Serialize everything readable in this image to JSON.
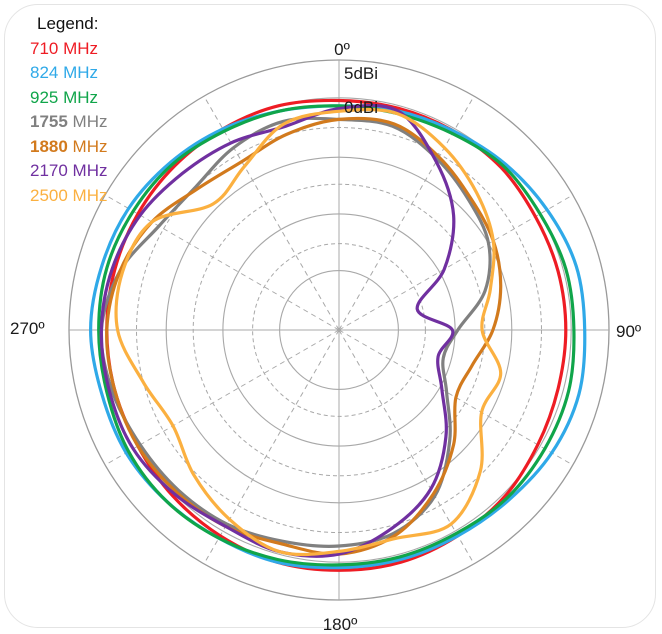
{
  "legend": {
    "title": "Legend:",
    "items": [
      {
        "freq": "710",
        "unit": " MHz",
        "color": "#ee1c24"
      },
      {
        "freq": "824",
        "unit": " MHz",
        "color": "#2fa9e8"
      },
      {
        "freq": "925",
        "unit": " MHz",
        "color": "#10a54a"
      },
      {
        "freq": "1755",
        "unit": " MHz",
        "color": "#808080"
      },
      {
        "freq": "1880",
        "unit": " MHz",
        "color": "#d27a1d"
      },
      {
        "freq": "2170",
        "unit": " MHz",
        "color": "#7030a0"
      },
      {
        "freq": "2500",
        "unit": " MHz",
        "color": "#fbb040"
      }
    ]
  },
  "chart_data": {
    "type": "polar-line",
    "angle_labels": {
      "top": "0º",
      "right": "90º",
      "bottom": "180º",
      "left": "270º"
    },
    "ring_labels": [
      "5dBi",
      "0dBi"
    ],
    "grid": true,
    "angles_deg": [
      0,
      15,
      30,
      45,
      60,
      75,
      90,
      105,
      120,
      135,
      150,
      165,
      180,
      195,
      210,
      225,
      240,
      255,
      270,
      285,
      300,
      315,
      330,
      345
    ],
    "series": [
      {
        "name": "710 MHz",
        "color": "#ee1c24",
        "r": [
          0.85,
          0.85,
          0.85,
          0.85,
          0.84,
          0.84,
          0.84,
          0.84,
          0.85,
          0.87,
          0.88,
          0.89,
          0.89,
          0.89,
          0.88,
          0.87,
          0.86,
          0.86,
          0.86,
          0.86,
          0.86,
          0.86,
          0.86,
          0.86
        ]
      },
      {
        "name": "824 MHz",
        "color": "#2fa9e8",
        "r": [
          0.83,
          0.84,
          0.85,
          0.87,
          0.89,
          0.91,
          0.91,
          0.92,
          0.91,
          0.89,
          0.88,
          0.88,
          0.88,
          0.89,
          0.89,
          0.9,
          0.91,
          0.91,
          0.92,
          0.91,
          0.9,
          0.88,
          0.86,
          0.84
        ]
      },
      {
        "name": "925 MHz",
        "color": "#10a54a",
        "r": [
          0.83,
          0.83,
          0.84,
          0.86,
          0.86,
          0.87,
          0.87,
          0.88,
          0.88,
          0.88,
          0.87,
          0.87,
          0.87,
          0.88,
          0.89,
          0.9,
          0.9,
          0.89,
          0.89,
          0.89,
          0.88,
          0.87,
          0.85,
          0.84
        ]
      },
      {
        "name": "1755 MHz",
        "color": "#808080",
        "r": [
          0.78,
          0.78,
          0.73,
          0.68,
          0.64,
          0.56,
          0.44,
          0.4,
          0.46,
          0.58,
          0.71,
          0.78,
          0.8,
          0.81,
          0.83,
          0.84,
          0.85,
          0.87,
          0.88,
          0.84,
          0.77,
          0.75,
          0.78,
          0.8
        ]
      },
      {
        "name": "1880 MHz",
        "color": "#d27a1d",
        "r": [
          0.78,
          0.79,
          0.74,
          0.69,
          0.66,
          0.62,
          0.57,
          0.51,
          0.5,
          0.6,
          0.7,
          0.79,
          0.83,
          0.82,
          0.84,
          0.85,
          0.86,
          0.86,
          0.86,
          0.84,
          0.8,
          0.74,
          0.72,
          0.75
        ]
      },
      {
        "name": "2170 MHz",
        "color": "#7030a0",
        "r": [
          0.82,
          0.84,
          0.72,
          0.6,
          0.45,
          0.3,
          0.42,
          0.38,
          0.44,
          0.56,
          0.68,
          0.76,
          0.83,
          0.85,
          0.84,
          0.86,
          0.88,
          0.88,
          0.88,
          0.87,
          0.85,
          0.82,
          0.8,
          0.78
        ]
      },
      {
        "name": "2500 MHz",
        "color": "#fbb040",
        "r": [
          0.81,
          0.83,
          0.78,
          0.72,
          0.66,
          0.58,
          0.53,
          0.62,
          0.61,
          0.74,
          0.83,
          0.8,
          0.82,
          0.85,
          0.81,
          0.76,
          0.71,
          0.75,
          0.82,
          0.83,
          0.8,
          0.66,
          0.7,
          0.79
        ]
      }
    ]
  }
}
